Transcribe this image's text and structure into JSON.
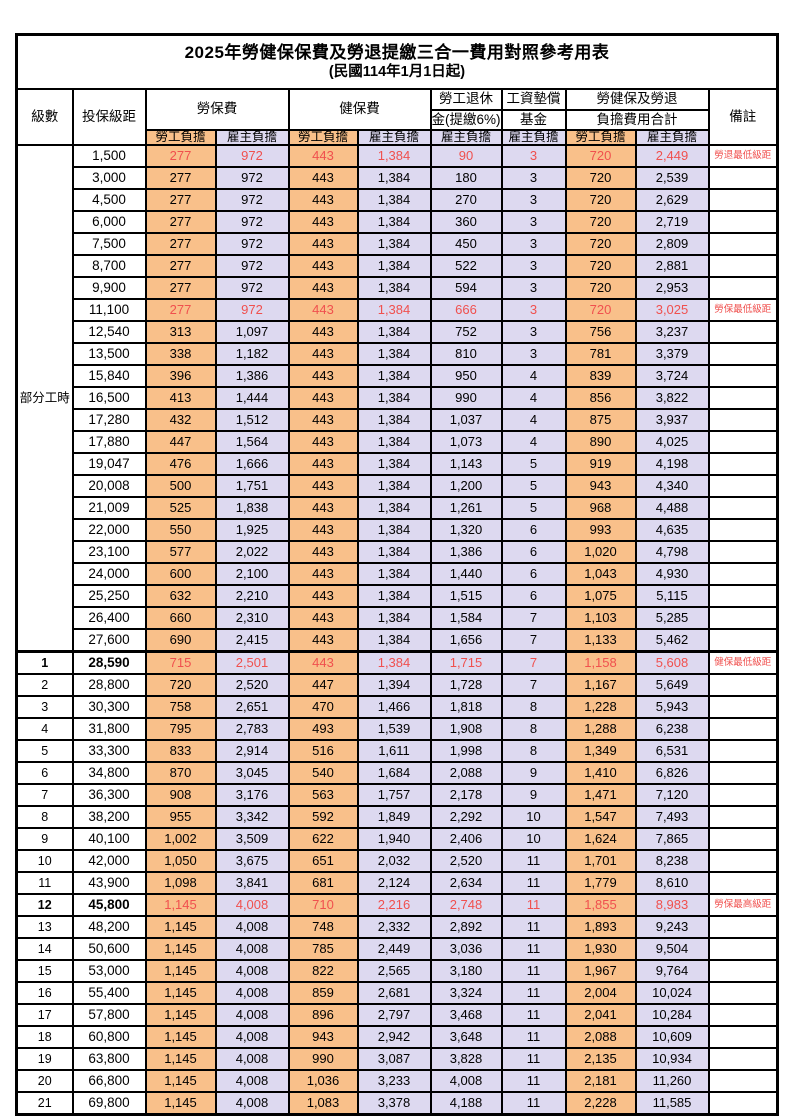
{
  "colors": {
    "employee_fill": "#f9c08a",
    "employer_fill": "#ddd9f0",
    "highlight_text": "#f0504e",
    "grid": "#000000"
  },
  "table": {
    "title": "2025年勞健保保費及勞退提繳三合一費用對照參考用表",
    "subtitle": "(民國114年1月1日起)",
    "header": {
      "level": "級數",
      "bracket": "投保級距",
      "labor_insurance": "勞保費",
      "health_insurance": "健保費",
      "pension_line1": "勞工退休",
      "pension_line2": "金(提繳6%)",
      "wage_fund_line1": "工資墊償",
      "wage_fund_line2": "基金",
      "total_line1": "勞健保及勞退",
      "total_line2": "負擔費用合計",
      "remark": "備註",
      "employee_burden": "勞工負擔",
      "employer_burden": "雇主負擔"
    },
    "burden_pattern": [
      "employee",
      "employer",
      "employee",
      "employer",
      "employer",
      "employer",
      "employee",
      "employer"
    ],
    "part_time_label": "部分工時",
    "part_time_span": 23,
    "rows": [
      {
        "level": null,
        "bracket": "1,500",
        "values": [
          "277",
          "972",
          "443",
          "1,384",
          "90",
          "3",
          "720",
          "2,449"
        ],
        "remark": "勞退最低級距",
        "highlight": true,
        "bold": false
      },
      {
        "level": null,
        "bracket": "3,000",
        "values": [
          "277",
          "972",
          "443",
          "1,384",
          "180",
          "3",
          "720",
          "2,539"
        ],
        "remark": "",
        "highlight": false,
        "bold": false
      },
      {
        "level": null,
        "bracket": "4,500",
        "values": [
          "277",
          "972",
          "443",
          "1,384",
          "270",
          "3",
          "720",
          "2,629"
        ],
        "remark": "",
        "highlight": false,
        "bold": false
      },
      {
        "level": null,
        "bracket": "6,000",
        "values": [
          "277",
          "972",
          "443",
          "1,384",
          "360",
          "3",
          "720",
          "2,719"
        ],
        "remark": "",
        "highlight": false,
        "bold": false
      },
      {
        "level": null,
        "bracket": "7,500",
        "values": [
          "277",
          "972",
          "443",
          "1,384",
          "450",
          "3",
          "720",
          "2,809"
        ],
        "remark": "",
        "highlight": false,
        "bold": false
      },
      {
        "level": null,
        "bracket": "8,700",
        "values": [
          "277",
          "972",
          "443",
          "1,384",
          "522",
          "3",
          "720",
          "2,881"
        ],
        "remark": "",
        "highlight": false,
        "bold": false
      },
      {
        "level": null,
        "bracket": "9,900",
        "values": [
          "277",
          "972",
          "443",
          "1,384",
          "594",
          "3",
          "720",
          "2,953"
        ],
        "remark": "",
        "highlight": false,
        "bold": false
      },
      {
        "level": null,
        "bracket": "11,100",
        "values": [
          "277",
          "972",
          "443",
          "1,384",
          "666",
          "3",
          "720",
          "3,025"
        ],
        "remark": "勞保最低級距",
        "highlight": true,
        "bold": false
      },
      {
        "level": null,
        "bracket": "12,540",
        "values": [
          "313",
          "1,097",
          "443",
          "1,384",
          "752",
          "3",
          "756",
          "3,237"
        ],
        "remark": "",
        "highlight": false,
        "bold": false
      },
      {
        "level": null,
        "bracket": "13,500",
        "values": [
          "338",
          "1,182",
          "443",
          "1,384",
          "810",
          "3",
          "781",
          "3,379"
        ],
        "remark": "",
        "highlight": false,
        "bold": false
      },
      {
        "level": null,
        "bracket": "15,840",
        "values": [
          "396",
          "1,386",
          "443",
          "1,384",
          "950",
          "4",
          "839",
          "3,724"
        ],
        "remark": "",
        "highlight": false,
        "bold": false
      },
      {
        "level": null,
        "bracket": "16,500",
        "values": [
          "413",
          "1,444",
          "443",
          "1,384",
          "990",
          "4",
          "856",
          "3,822"
        ],
        "remark": "",
        "highlight": false,
        "bold": false
      },
      {
        "level": null,
        "bracket": "17,280",
        "values": [
          "432",
          "1,512",
          "443",
          "1,384",
          "1,037",
          "4",
          "875",
          "3,937"
        ],
        "remark": "",
        "highlight": false,
        "bold": false
      },
      {
        "level": null,
        "bracket": "17,880",
        "values": [
          "447",
          "1,564",
          "443",
          "1,384",
          "1,073",
          "4",
          "890",
          "4,025"
        ],
        "remark": "",
        "highlight": false,
        "bold": false
      },
      {
        "level": null,
        "bracket": "19,047",
        "values": [
          "476",
          "1,666",
          "443",
          "1,384",
          "1,143",
          "5",
          "919",
          "4,198"
        ],
        "remark": "",
        "highlight": false,
        "bold": false
      },
      {
        "level": null,
        "bracket": "20,008",
        "values": [
          "500",
          "1,751",
          "443",
          "1,384",
          "1,200",
          "5",
          "943",
          "4,340"
        ],
        "remark": "",
        "highlight": false,
        "bold": false
      },
      {
        "level": null,
        "bracket": "21,009",
        "values": [
          "525",
          "1,838",
          "443",
          "1,384",
          "1,261",
          "5",
          "968",
          "4,488"
        ],
        "remark": "",
        "highlight": false,
        "bold": false
      },
      {
        "level": null,
        "bracket": "22,000",
        "values": [
          "550",
          "1,925",
          "443",
          "1,384",
          "1,320",
          "6",
          "993",
          "4,635"
        ],
        "remark": "",
        "highlight": false,
        "bold": false
      },
      {
        "level": null,
        "bracket": "23,100",
        "values": [
          "577",
          "2,022",
          "443",
          "1,384",
          "1,386",
          "6",
          "1,020",
          "4,798"
        ],
        "remark": "",
        "highlight": false,
        "bold": false
      },
      {
        "level": null,
        "bracket": "24,000",
        "values": [
          "600",
          "2,100",
          "443",
          "1,384",
          "1,440",
          "6",
          "1,043",
          "4,930"
        ],
        "remark": "",
        "highlight": false,
        "bold": false
      },
      {
        "level": null,
        "bracket": "25,250",
        "values": [
          "632",
          "2,210",
          "443",
          "1,384",
          "1,515",
          "6",
          "1,075",
          "5,115"
        ],
        "remark": "",
        "highlight": false,
        "bold": false
      },
      {
        "level": null,
        "bracket": "26,400",
        "values": [
          "660",
          "2,310",
          "443",
          "1,384",
          "1,584",
          "7",
          "1,103",
          "5,285"
        ],
        "remark": "",
        "highlight": false,
        "bold": false
      },
      {
        "level": null,
        "bracket": "27,600",
        "values": [
          "690",
          "2,415",
          "443",
          "1,384",
          "1,656",
          "7",
          "1,133",
          "5,462"
        ],
        "remark": "",
        "highlight": false,
        "bold": false
      },
      {
        "level": "1",
        "bracket": "28,590",
        "values": [
          "715",
          "2,501",
          "443",
          "1,384",
          "1,715",
          "7",
          "1,158",
          "5,608"
        ],
        "remark": "健保最低級距",
        "highlight": true,
        "bold": true
      },
      {
        "level": "2",
        "bracket": "28,800",
        "values": [
          "720",
          "2,520",
          "447",
          "1,394",
          "1,728",
          "7",
          "1,167",
          "5,649"
        ],
        "remark": "",
        "highlight": false,
        "bold": false
      },
      {
        "level": "3",
        "bracket": "30,300",
        "values": [
          "758",
          "2,651",
          "470",
          "1,466",
          "1,818",
          "8",
          "1,228",
          "5,943"
        ],
        "remark": "",
        "highlight": false,
        "bold": false
      },
      {
        "level": "4",
        "bracket": "31,800",
        "values": [
          "795",
          "2,783",
          "493",
          "1,539",
          "1,908",
          "8",
          "1,288",
          "6,238"
        ],
        "remark": "",
        "highlight": false,
        "bold": false
      },
      {
        "level": "5",
        "bracket": "33,300",
        "values": [
          "833",
          "2,914",
          "516",
          "1,611",
          "1,998",
          "8",
          "1,349",
          "6,531"
        ],
        "remark": "",
        "highlight": false,
        "bold": false
      },
      {
        "level": "6",
        "bracket": "34,800",
        "values": [
          "870",
          "3,045",
          "540",
          "1,684",
          "2,088",
          "9",
          "1,410",
          "6,826"
        ],
        "remark": "",
        "highlight": false,
        "bold": false
      },
      {
        "level": "7",
        "bracket": "36,300",
        "values": [
          "908",
          "3,176",
          "563",
          "1,757",
          "2,178",
          "9",
          "1,471",
          "7,120"
        ],
        "remark": "",
        "highlight": false,
        "bold": false
      },
      {
        "level": "8",
        "bracket": "38,200",
        "values": [
          "955",
          "3,342",
          "592",
          "1,849",
          "2,292",
          "10",
          "1,547",
          "7,493"
        ],
        "remark": "",
        "highlight": false,
        "bold": false
      },
      {
        "level": "9",
        "bracket": "40,100",
        "values": [
          "1,002",
          "3,509",
          "622",
          "1,940",
          "2,406",
          "10",
          "1,624",
          "7,865"
        ],
        "remark": "",
        "highlight": false,
        "bold": false
      },
      {
        "level": "10",
        "bracket": "42,000",
        "values": [
          "1,050",
          "3,675",
          "651",
          "2,032",
          "2,520",
          "11",
          "1,701",
          "8,238"
        ],
        "remark": "",
        "highlight": false,
        "bold": false
      },
      {
        "level": "11",
        "bracket": "43,900",
        "values": [
          "1,098",
          "3,841",
          "681",
          "2,124",
          "2,634",
          "11",
          "1,779",
          "8,610"
        ],
        "remark": "",
        "highlight": false,
        "bold": false
      },
      {
        "level": "12",
        "bracket": "45,800",
        "values": [
          "1,145",
          "4,008",
          "710",
          "2,216",
          "2,748",
          "11",
          "1,855",
          "8,983"
        ],
        "remark": "勞保最高級距",
        "highlight": true,
        "bold": true
      },
      {
        "level": "13",
        "bracket": "48,200",
        "values": [
          "1,145",
          "4,008",
          "748",
          "2,332",
          "2,892",
          "11",
          "1,893",
          "9,243"
        ],
        "remark": "",
        "highlight": false,
        "bold": false
      },
      {
        "level": "14",
        "bracket": "50,600",
        "values": [
          "1,145",
          "4,008",
          "785",
          "2,449",
          "3,036",
          "11",
          "1,930",
          "9,504"
        ],
        "remark": "",
        "highlight": false,
        "bold": false
      },
      {
        "level": "15",
        "bracket": "53,000",
        "values": [
          "1,145",
          "4,008",
          "822",
          "2,565",
          "3,180",
          "11",
          "1,967",
          "9,764"
        ],
        "remark": "",
        "highlight": false,
        "bold": false
      },
      {
        "level": "16",
        "bracket": "55,400",
        "values": [
          "1,145",
          "4,008",
          "859",
          "2,681",
          "3,324",
          "11",
          "2,004",
          "10,024"
        ],
        "remark": "",
        "highlight": false,
        "bold": false
      },
      {
        "level": "17",
        "bracket": "57,800",
        "values": [
          "1,145",
          "4,008",
          "896",
          "2,797",
          "3,468",
          "11",
          "2,041",
          "10,284"
        ],
        "remark": "",
        "highlight": false,
        "bold": false
      },
      {
        "level": "18",
        "bracket": "60,800",
        "values": [
          "1,145",
          "4,008",
          "943",
          "2,942",
          "3,648",
          "11",
          "2,088",
          "10,609"
        ],
        "remark": "",
        "highlight": false,
        "bold": false
      },
      {
        "level": "19",
        "bracket": "63,800",
        "values": [
          "1,145",
          "4,008",
          "990",
          "3,087",
          "3,828",
          "11",
          "2,135",
          "10,934"
        ],
        "remark": "",
        "highlight": false,
        "bold": false
      },
      {
        "level": "20",
        "bracket": "66,800",
        "values": [
          "1,145",
          "4,008",
          "1,036",
          "3,233",
          "4,008",
          "11",
          "2,181",
          "11,260"
        ],
        "remark": "",
        "highlight": false,
        "bold": false
      },
      {
        "level": "21",
        "bracket": "69,800",
        "values": [
          "1,145",
          "4,008",
          "1,083",
          "3,378",
          "4,188",
          "11",
          "2,228",
          "11,585"
        ],
        "remark": "",
        "highlight": false,
        "bold": false
      }
    ]
  }
}
